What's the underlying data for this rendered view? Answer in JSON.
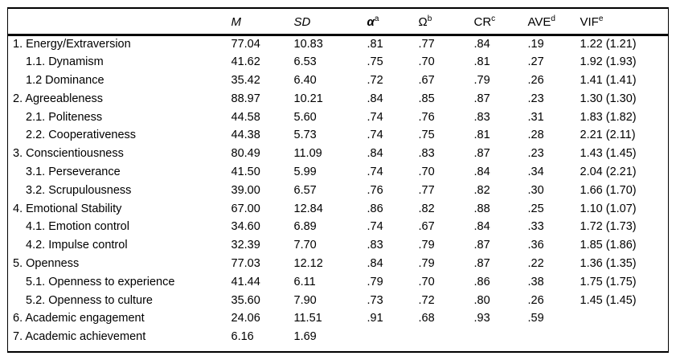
{
  "table": {
    "columns": [
      {
        "key": "label",
        "label": "",
        "italic": false,
        "bold": false,
        "sup": ""
      },
      {
        "key": "m",
        "label": "M",
        "italic": true,
        "bold": false,
        "sup": ""
      },
      {
        "key": "sd",
        "label": "SD",
        "italic": true,
        "bold": false,
        "sup": ""
      },
      {
        "key": "alpha",
        "label": "α",
        "italic": true,
        "bold": true,
        "sup": "a"
      },
      {
        "key": "omega",
        "label": "Ω",
        "italic": false,
        "bold": false,
        "sup": "b"
      },
      {
        "key": "cr",
        "label": "CR",
        "italic": false,
        "bold": false,
        "sup": "c"
      },
      {
        "key": "ave",
        "label": "AVE",
        "italic": false,
        "bold": false,
        "sup": "d"
      },
      {
        "key": "vif",
        "label": "VIF",
        "italic": false,
        "bold": false,
        "sup": "e"
      }
    ],
    "rows": [
      {
        "label": "1. Energy/Extraversion",
        "indent": false,
        "m": "77.04",
        "sd": "10.83",
        "alpha": ".81",
        "omega": ".77",
        "cr": ".84",
        "ave": ".19",
        "vif": "1.22 (1.21)"
      },
      {
        "label": "1.1. Dynamism",
        "indent": true,
        "m": "41.62",
        "sd": "6.53",
        "alpha": ".75",
        "omega": ".70",
        "cr": ".81",
        "ave": ".27",
        "vif": "1.92 (1.93)"
      },
      {
        "label": "1.2 Dominance",
        "indent": true,
        "m": "35.42",
        "sd": "6.40",
        "alpha": ".72",
        "omega": ".67",
        "cr": ".79",
        "ave": ".26",
        "vif": "1.41 (1.41)"
      },
      {
        "label": "2. Agreeableness",
        "indent": false,
        "m": "88.97",
        "sd": "10.21",
        "alpha": ".84",
        "omega": ".85",
        "cr": ".87",
        "ave": ".23",
        "vif": "1.30 (1.30)"
      },
      {
        "label": "2.1. Politeness",
        "indent": true,
        "m": "44.58",
        "sd": "5.60",
        "alpha": ".74",
        "omega": ".76",
        "cr": ".83",
        "ave": ".31",
        "vif": "1.83 (1.82)"
      },
      {
        "label": "2.2. Cooperativeness",
        "indent": true,
        "m": "44.38",
        "sd": "5.73",
        "alpha": ".74",
        "omega": ".75",
        "cr": ".81",
        "ave": ".28",
        "vif": "2.21 (2.11)"
      },
      {
        "label": "3. Conscientiousness",
        "indent": false,
        "m": "80.49",
        "sd": "11.09",
        "alpha": ".84",
        "omega": ".83",
        "cr": ".87",
        "ave": ".23",
        "vif": "1.43 (1.45)"
      },
      {
        "label": "3.1. Perseverance",
        "indent": true,
        "m": "41.50",
        "sd": "5.99",
        "alpha": ".74",
        "omega": ".70",
        "cr": ".84",
        "ave": ".34",
        "vif": "2.04 (2.21)"
      },
      {
        "label": "3.2. Scrupulousness",
        "indent": true,
        "m": "39.00",
        "sd": "6.57",
        "alpha": ".76",
        "omega": ".77",
        "cr": ".82",
        "ave": ".30",
        "vif": "1.66 (1.70)"
      },
      {
        "label": "4. Emotional Stability",
        "indent": false,
        "m": "67.00",
        "sd": "12.84",
        "alpha": ".86",
        "omega": ".82",
        "cr": ".88",
        "ave": ".25",
        "vif": "1.10 (1.07)"
      },
      {
        "label": "4.1. Emotion control",
        "indent": true,
        "m": "34.60",
        "sd": "6.89",
        "alpha": ".74",
        "omega": ".67",
        "cr": ".84",
        "ave": ".33",
        "vif": "1.72 (1.73)"
      },
      {
        "label": "4.2. Impulse control",
        "indent": true,
        "m": "32.39",
        "sd": "7.70",
        "alpha": ".83",
        "omega": ".79",
        "cr": ".87",
        "ave": ".36",
        "vif": "1.85 (1.86)"
      },
      {
        "label": "5. Openness",
        "indent": false,
        "m": "77.03",
        "sd": "12.12",
        "alpha": ".84",
        "omega": ".79",
        "cr": ".87",
        "ave": ".22",
        "vif": "1.36 (1.35)"
      },
      {
        "label": "5.1. Openness to experience",
        "indent": true,
        "m": "41.44",
        "sd": "6.11",
        "alpha": ".79",
        "omega": ".70",
        "cr": ".86",
        "ave": ".38",
        "vif": "1.75 (1.75)"
      },
      {
        "label": "5.2. Openness to culture",
        "indent": true,
        "m": "35.60",
        "sd": "7.90",
        "alpha": ".73",
        "omega": ".72",
        "cr": ".80",
        "ave": ".26",
        "vif": "1.45 (1.45)"
      },
      {
        "label": "6. Academic engagement",
        "indent": false,
        "m": "24.06",
        "sd": "11.51",
        "alpha": ".91",
        "omega": ".68",
        "cr": ".93",
        "ave": ".59",
        "vif": ""
      },
      {
        "label": "7. Academic achievement",
        "indent": false,
        "m": "6.16",
        "sd": "1.69",
        "alpha": "",
        "omega": "",
        "cr": "",
        "ave": "",
        "vif": ""
      }
    ]
  }
}
